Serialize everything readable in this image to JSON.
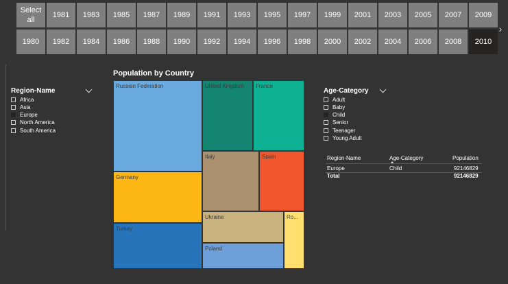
{
  "year_slicer": {
    "select_all_label": "Select all",
    "row1": [
      "1981",
      "1983",
      "1985",
      "1987",
      "1989",
      "1991",
      "1993",
      "1995",
      "1997",
      "1999",
      "2001",
      "2003",
      "2005",
      "2007",
      "2009"
    ],
    "row2": [
      "1980",
      "1982",
      "1984",
      "1986",
      "1988",
      "1990",
      "1992",
      "1994",
      "1996",
      "1998",
      "2000",
      "2002",
      "2004",
      "2006",
      "2008",
      "2010"
    ],
    "selected": "2010"
  },
  "region_slicer": {
    "title": "Region-Name",
    "items": [
      "Africa",
      "Asia",
      "Europe",
      "North America",
      "South America"
    ],
    "selected": "Europe"
  },
  "age_slicer": {
    "title": "Age-Category",
    "items": [
      "Adult",
      "Baby",
      "Child",
      "Senior",
      "Teenager",
      "Young Adult"
    ],
    "selected": "Child"
  },
  "treemap": {
    "title": "Population by Country",
    "tiles": [
      {
        "label": "Russian Federation",
        "color": "#6aaadf"
      },
      {
        "label": "Germany",
        "color": "#fcb714"
      },
      {
        "label": "Turkey",
        "color": "#2874bb"
      },
      {
        "label": "United Kingdom",
        "color": "#138571"
      },
      {
        "label": "France",
        "color": "#0eb194"
      },
      {
        "label": "Italy",
        "color": "#ab916f"
      },
      {
        "label": "Spain",
        "color": "#f0572c"
      },
      {
        "label": "Ukraine",
        "color": "#c9b47f"
      },
      {
        "label": "Poland",
        "color": "#6f9fd8"
      },
      {
        "label": "Ro...",
        "color": "#ffe06f"
      }
    ]
  },
  "table": {
    "headers": [
      "Region-Name",
      "Age-Category",
      "Population"
    ],
    "rows": [
      {
        "region": "Europe",
        "age": "Child",
        "population": "92146829"
      }
    ],
    "total": {
      "label": "Total",
      "population": "92146829"
    }
  }
}
